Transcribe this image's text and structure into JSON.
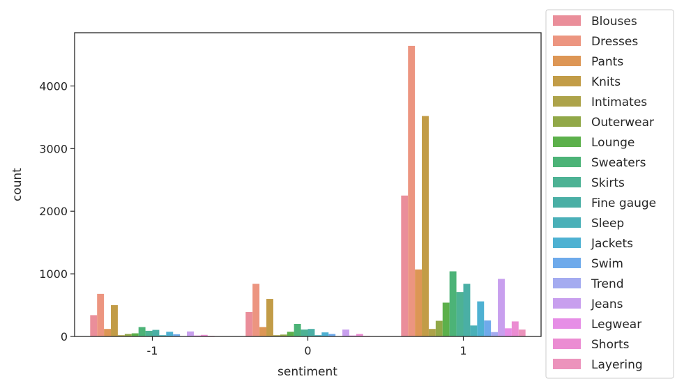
{
  "chart_data": {
    "type": "bar",
    "xlabel": "sentiment",
    "ylabel": "count",
    "categories": [
      "-1",
      "0",
      "1"
    ],
    "ylim": [
      0,
      4850
    ],
    "yticks": [
      0,
      1000,
      2000,
      3000,
      4000
    ],
    "grid": false,
    "legend_position": "right-outside",
    "series": [
      {
        "name": "Blouses",
        "color": "#ea8e9a",
        "values": [
          340,
          390,
          2250
        ]
      },
      {
        "name": "Dresses",
        "color": "#ec9580",
        "values": [
          680,
          840,
          4640
        ]
      },
      {
        "name": "Pants",
        "color": "#dd9655",
        "values": [
          120,
          150,
          1070
        ]
      },
      {
        "name": "Knits",
        "color": "#c29c47",
        "values": [
          500,
          600,
          3520
        ]
      },
      {
        "name": "Intimates",
        "color": "#ada34a",
        "values": [
          20,
          20,
          120
        ]
      },
      {
        "name": "Outerwear",
        "color": "#91a848",
        "values": [
          40,
          30,
          250
        ]
      },
      {
        "name": "Lounge",
        "color": "#5cb04b",
        "values": [
          50,
          75,
          540
        ]
      },
      {
        "name": "Sweaters",
        "color": "#4cb377",
        "values": [
          150,
          200,
          1040
        ]
      },
      {
        "name": "Skirts",
        "color": "#4db294",
        "values": [
          90,
          110,
          710
        ]
      },
      {
        "name": "Fine gauge",
        "color": "#4aafa5",
        "values": [
          105,
          120,
          840
        ]
      },
      {
        "name": "Sleep",
        "color": "#4ab0b8",
        "values": [
          20,
          20,
          175
        ]
      },
      {
        "name": "Jackets",
        "color": "#4eb1d2",
        "values": [
          75,
          65,
          560
        ]
      },
      {
        "name": "Swim",
        "color": "#6eaaeb",
        "values": [
          35,
          40,
          255
        ]
      },
      {
        "name": "Trend",
        "color": "#a4abf0",
        "values": [
          5,
          5,
          70
        ]
      },
      {
        "name": "Jeans",
        "color": "#c89fee",
        "values": [
          80,
          110,
          920
        ]
      },
      {
        "name": "Legwear",
        "color": "#e68ee6",
        "values": [
          15,
          15,
          130
        ]
      },
      {
        "name": "Shorts",
        "color": "#eb8cd2",
        "values": [
          25,
          40,
          240
        ]
      },
      {
        "name": "Layering",
        "color": "#ec93bc",
        "values": [
          10,
          10,
          110
        ]
      }
    ]
  }
}
